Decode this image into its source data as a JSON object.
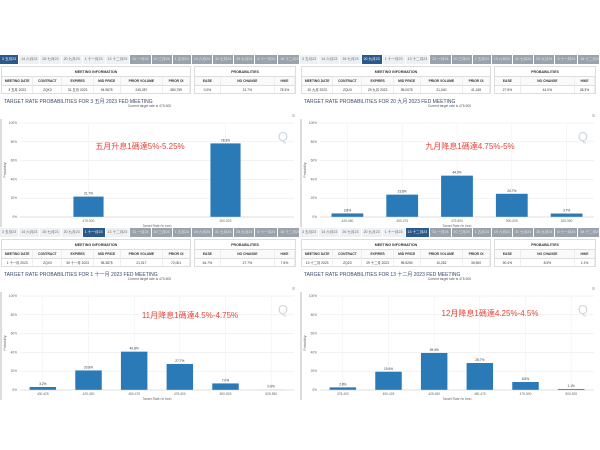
{
  "tabs": [
    "3 五月23",
    "14 六月23",
    "26 七月23",
    "20 九月23",
    "1 十一月23",
    "13 十二月23",
    "31 一月24",
    "20 三月24",
    "1 五月24",
    "19 六月24",
    "31 七月24",
    "25 九月24",
    "6 十一月24",
    "18 十二月24"
  ],
  "tabs_enabled": 6,
  "labels": {
    "meeting_info": "MEETING INFORMATION",
    "probabilities": "PROBABILITIES",
    "cols": [
      "MEETING DATE",
      "CONTRACT",
      "EXPIRES",
      "MID PRICE",
      "PRIOR VOLUME",
      "PRIOR OI"
    ],
    "prob_cols": [
      "EASE",
      "NO CHANGE",
      "HIKE"
    ],
    "current_target": "Current target rate is 475-500",
    "ylabel": "Probability",
    "xlabel": "Target Rate (in bps)",
    "yticks": [
      "0%",
      "20%",
      "40%",
      "60%",
      "80%",
      "100%"
    ]
  },
  "colors": {
    "bar": "#2a7ab8",
    "annotation": "#e8443a"
  },
  "panels": [
    {
      "selected_tab": 0,
      "title": "TARGET RATE PROBABILITIES FOR 3 五月 2023 FED MEETING",
      "meeting": [
        "3 五月 2023",
        "ZQK3",
        "31 五月 2023",
        "94.9875",
        "245,287",
        "380,759"
      ],
      "probs": [
        "0.0%",
        "21.7%",
        "78.3%"
      ],
      "annotation": "五月升息1碼達5%-5.25%",
      "chart_data": {
        "type": "bar",
        "categories": [
          "475-500",
          "500-525"
        ],
        "values": [
          21.7,
          78.3
        ],
        "ylim": [
          0,
          100
        ]
      }
    },
    {
      "selected_tab": 3,
      "title": "TARGET RATE PROBABILITIES FOR 20 九月 2023 FED MEETING",
      "meeting": [
        "20 九月 2023",
        "ZQU3",
        "29 九月 2023",
        "95.0075",
        "21,040",
        "41,245"
      ],
      "probs": [
        "27.5%",
        "44.0%",
        "28.3%"
      ],
      "annotation": "九月降息1碼達4.75%-5%",
      "chart_data": {
        "type": "bar",
        "categories": [
          "425-450",
          "450-475",
          "475-500",
          "500-525",
          "525-550"
        ],
        "values": [
          3.8,
          23.8,
          44.0,
          24.7,
          3.7
        ],
        "ylim": [
          0,
          100
        ]
      }
    },
    {
      "selected_tab": 4,
      "title": "TARGET RATE PROBABILITIES FOR 1 十一月 2023 FED MEETING",
      "meeting": [
        "1 十一月 2023",
        "ZQX3",
        "30 十一月 2023",
        "95.3875",
        "21,017",
        "72,001"
      ],
      "probs": [
        "64.7%",
        "27.7%",
        "7.6%"
      ],
      "annotation": "11月降息1碼達4.5%-4.75%",
      "chart_data": {
        "type": "bar",
        "categories": [
          "400-425",
          "425-450",
          "450-475",
          "475-500",
          "500-525",
          "525-550"
        ],
        "values": [
          3.2,
          20.8,
          40.8,
          27.7,
          7.0,
          0.6
        ],
        "ylim": [
          0,
          100
        ]
      }
    },
    {
      "selected_tab": 5,
      "title": "TARGET RATE PROBABILITIES FOR 13 十二月 2023 FED MEETING",
      "meeting": [
        "13 十二月 2023",
        "ZQZ3",
        "29 十二月 2023",
        "95.5250",
        "10,282",
        "35,500"
      ],
      "probs": [
        "90.4%",
        "8.5%",
        "1.1%"
      ],
      "annotation": "12月降息1碼達4.25%-4.5%",
      "chart_data": {
        "type": "bar",
        "categories": [
          "375-400",
          "400-425",
          "425-450",
          "450-475",
          "475-500",
          "500-525"
        ],
        "values": [
          2.8,
          19.4,
          39.4,
          28.7,
          8.5,
          1.1
        ],
        "ylim": [
          0,
          100
        ]
      }
    }
  ]
}
